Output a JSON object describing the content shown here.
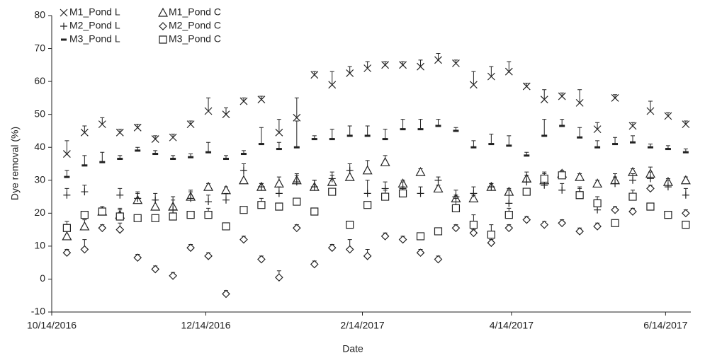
{
  "chart_data": {
    "type": "scatter",
    "x_label": "Date",
    "y_label": "Dye removal (%)",
    "x": [
      "10/20/2016",
      "10/27/2016",
      "11/3/2016",
      "11/10/2016",
      "11/17/2016",
      "11/24/2016",
      "12/1/2016",
      "12/8/2016",
      "12/15/2016",
      "12/22/2016",
      "12/29/2016",
      "1/5/2017",
      "1/12/2017",
      "1/19/2017",
      "1/26/2017",
      "2/2/2017",
      "2/9/2017",
      "2/16/2017",
      "2/23/2017",
      "3/2/2017",
      "3/9/2017",
      "3/16/2017",
      "3/23/2017",
      "3/30/2017",
      "4/6/2017",
      "4/13/2017",
      "4/20/2017",
      "4/27/2017",
      "5/4/2017",
      "5/11/2017",
      "5/18/2017",
      "5/25/2017",
      "6/1/2017",
      "6/8/2017",
      "6/15/2017",
      "6/22/2017"
    ],
    "xlim": [
      "10/14/2016",
      "6/24/2017"
    ],
    "xticks": [
      "10/14/2016",
      "12/14/2016",
      "2/14/2017",
      "4/14/2017",
      "6/14/2017"
    ],
    "ylim": [
      -10,
      80
    ],
    "yticks": [
      -10,
      0,
      10,
      20,
      30,
      40,
      50,
      60,
      70,
      80
    ],
    "legend": "upper left",
    "series": [
      {
        "name": "M1_Pond L",
        "marker": "x",
        "color": "#222222",
        "values": [
          38,
          44.5,
          47,
          44.5,
          46,
          42.5,
          43,
          47,
          51,
          50,
          54,
          54.5,
          44.5,
          49,
          62,
          59,
          62.5,
          64,
          65,
          65,
          64.5,
          66.5,
          65.5,
          59,
          61.5,
          63,
          58.5,
          54.5,
          55.5,
          53.5,
          45.5,
          55,
          46.5,
          51,
          49.5,
          47
        ],
        "errors": [
          4,
          2,
          2,
          1,
          1,
          1,
          1,
          1,
          4,
          2,
          1,
          1,
          4,
          6,
          1,
          4,
          2,
          2,
          1,
          1,
          2,
          2,
          1,
          4,
          3,
          3,
          1,
          3,
          1,
          4,
          2,
          1,
          1,
          3,
          1,
          1
        ]
      },
      {
        "name": "M1_Pond C",
        "marker": "triangle",
        "color": "#222222",
        "values": [
          13,
          16,
          20.5,
          19.5,
          24,
          22,
          22,
          25,
          28,
          27,
          30,
          28,
          29,
          30,
          28,
          29.5,
          31,
          33,
          35.5,
          29,
          32.5,
          27.5,
          24.5,
          24.5,
          28,
          26.5,
          30.5,
          30,
          32,
          31,
          29,
          30,
          32.5,
          32,
          29.5,
          30
        ],
        "errors": [
          2,
          2,
          1,
          2,
          2,
          2,
          2,
          2,
          1,
          1,
          3,
          1,
          2,
          2,
          2,
          2,
          2,
          3,
          2,
          1,
          1,
          1,
          1,
          1,
          1,
          1,
          2,
          2,
          1,
          1,
          1,
          2,
          1,
          2,
          1,
          1
        ]
      },
      {
        "name": "M2_Pond L",
        "marker": "plus",
        "color": "#222222",
        "values": [
          25.5,
          26.5,
          21,
          25.5,
          24.5,
          24,
          21,
          24.5,
          23.5,
          24,
          33,
          28,
          26,
          29.5,
          28,
          30.5,
          33,
          26,
          27.5,
          27.5,
          26,
          30,
          25,
          26,
          28,
          23,
          29.5,
          28.5,
          27,
          26,
          21,
          29,
          30,
          30.5,
          28,
          25.5
        ],
        "errors": [
          2,
          2,
          1,
          2,
          2,
          2,
          4,
          2,
          2,
          2,
          2,
          1,
          2,
          2,
          2,
          2,
          2,
          4,
          2,
          2,
          2,
          1,
          2,
          2,
          1,
          4,
          2,
          2,
          2,
          2,
          2,
          2,
          2,
          2,
          2,
          2
        ]
      },
      {
        "name": "M2_Pond C",
        "marker": "diamond",
        "color": "#222222",
        "values": [
          8,
          9,
          15.5,
          15,
          6.5,
          3,
          1,
          9.5,
          7,
          -4.5,
          12,
          6,
          0.5,
          15.5,
          4.5,
          9.5,
          9,
          7,
          13,
          12,
          8,
          6,
          15.5,
          14,
          11,
          15.5,
          18,
          16.5,
          17,
          14.5,
          16,
          21,
          20.5,
          27.5,
          19.5,
          20
        ],
        "errors": [
          1,
          3,
          1,
          2,
          1,
          1,
          1,
          1,
          1,
          1,
          1,
          1,
          2,
          1,
          1,
          1,
          3,
          2,
          1,
          1,
          1,
          1,
          1,
          1,
          1,
          1,
          1,
          1,
          1,
          1,
          1,
          1,
          1,
          1,
          1,
          1
        ]
      },
      {
        "name": "M3_Pond L",
        "marker": "dash",
        "color": "#222222",
        "values": [
          31,
          34.5,
          35.5,
          36.5,
          39,
          38,
          36.5,
          37,
          38.5,
          36.5,
          38,
          41,
          39.5,
          40,
          42.5,
          42.5,
          43.5,
          43.5,
          42.5,
          45.5,
          45.5,
          46.5,
          45,
          40,
          41,
          40.5,
          37.5,
          43.5,
          46.5,
          43,
          40,
          41,
          41.5,
          40,
          39.5,
          38.5
        ],
        "errors": [
          2,
          3,
          3,
          1,
          1,
          1,
          1,
          1,
          3,
          1,
          1,
          5,
          2,
          8,
          1,
          3,
          3,
          3,
          3,
          3,
          3,
          2,
          1,
          2,
          3,
          3,
          1,
          5,
          2,
          3,
          2,
          2,
          2,
          1,
          1,
          1
        ]
      },
      {
        "name": "M3_Pond C",
        "marker": "square",
        "color": "#222222",
        "values": [
          15.5,
          19.5,
          20.5,
          19,
          18.5,
          18.5,
          19,
          19.5,
          19.5,
          16,
          21,
          22.5,
          22,
          23.5,
          20.5,
          26.5,
          16.5,
          22.5,
          25,
          26,
          13,
          14.5,
          21.5,
          16.5,
          13.5,
          19.5,
          26.5,
          30.5,
          31.5,
          25.5,
          23,
          17,
          25,
          22,
          19.5,
          16.5
        ],
        "errors": [
          2,
          1,
          1,
          2,
          1,
          1,
          1,
          1,
          2,
          1,
          1,
          2,
          1,
          1,
          1,
          1,
          1,
          1,
          2,
          2,
          1,
          1,
          3,
          3,
          3,
          2,
          1,
          2,
          1,
          2,
          2,
          1,
          2,
          1,
          1,
          1
        ]
      }
    ]
  }
}
